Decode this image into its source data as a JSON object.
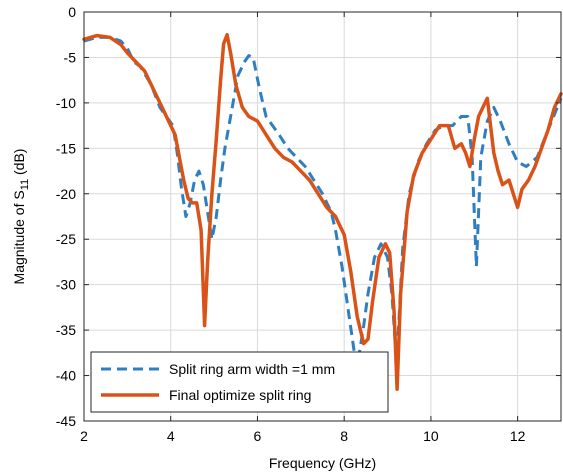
{
  "chart_data": {
    "type": "line",
    "title": "",
    "xlabel": "Frequency (GHz)",
    "ylabel_main": "Magnitude of S",
    "ylabel_sub": "11",
    "ylabel_unit": " (dB)",
    "xlim": [
      2,
      13
    ],
    "ylim": [
      -45,
      0
    ],
    "xticks": [
      2,
      4,
      6,
      8,
      10,
      12
    ],
    "xtick_labels": [
      "2",
      "4",
      "6",
      "8",
      "10",
      "12"
    ],
    "yticks": [
      0,
      -5,
      -10,
      -15,
      -20,
      -25,
      -30,
      -35,
      -40,
      -45
    ],
    "ytick_labels": [
      "0",
      "-5",
      "-10",
      "-15",
      "-20",
      "-25",
      "-30",
      "-35",
      "-40",
      "-45"
    ],
    "grid": true,
    "legend_position": "bottom-left",
    "series": [
      {
        "name": "Split ring arm width =1 mm",
        "color": "#2E7FC2",
        "style": "dashed",
        "x": [
          2.0,
          2.3,
          2.6,
          2.85,
          3.0,
          3.15,
          3.3,
          3.55,
          3.75,
          3.9,
          4.05,
          4.15,
          4.25,
          4.35,
          4.45,
          4.55,
          4.65,
          4.75,
          4.85,
          4.95,
          5.05,
          5.15,
          5.25,
          5.4,
          5.55,
          5.7,
          5.8,
          5.9,
          6.05,
          6.2,
          6.35,
          6.5,
          6.7,
          6.9,
          7.1,
          7.3,
          7.5,
          7.7,
          7.8,
          7.95,
          8.1,
          8.25,
          8.35,
          8.45,
          8.55,
          8.7,
          8.85,
          9.0,
          9.1,
          9.2,
          9.25,
          9.35,
          9.5,
          9.7,
          9.9,
          10.1,
          10.3,
          10.5,
          10.7,
          10.85,
          10.95,
          11.05,
          11.15,
          11.3,
          11.45,
          11.6,
          11.8,
          12.0,
          12.2,
          12.45,
          12.7,
          13.0
        ],
        "y": [
          -3.2,
          -2.8,
          -2.8,
          -3.2,
          -4.0,
          -5.5,
          -6.0,
          -8.0,
          -10.5,
          -11.5,
          -12.5,
          -15.5,
          -19.5,
          -22.5,
          -21.0,
          -18.5,
          -17.5,
          -19.0,
          -22.0,
          -25.0,
          -22.5,
          -18.5,
          -15.0,
          -11.0,
          -7.0,
          -5.5,
          -4.8,
          -5.0,
          -8.5,
          -11.5,
          -12.5,
          -13.5,
          -15.0,
          -16.0,
          -17.0,
          -18.5,
          -20.0,
          -22.0,
          -24.0,
          -28.0,
          -33.0,
          -38.0,
          -37.5,
          -34.5,
          -31.0,
          -27.0,
          -25.5,
          -27.0,
          -31.0,
          -38.0,
          -35.0,
          -26.0,
          -20.0,
          -16.5,
          -14.5,
          -13.0,
          -12.5,
          -12.5,
          -11.5,
          -11.5,
          -16.0,
          -28.0,
          -16.0,
          -12.0,
          -10.5,
          -12.0,
          -14.5,
          -16.5,
          -17.0,
          -16.0,
          -13.0,
          -9.5
        ]
      },
      {
        "name": "Final optimize split ring",
        "color": "#D95319",
        "style": "solid",
        "x": [
          2.0,
          2.3,
          2.6,
          2.85,
          3.0,
          3.2,
          3.4,
          3.6,
          3.8,
          3.95,
          4.1,
          4.2,
          4.3,
          4.4,
          4.5,
          4.6,
          4.7,
          4.78,
          4.85,
          4.95,
          5.05,
          5.15,
          5.22,
          5.3,
          5.38,
          5.5,
          5.65,
          5.8,
          6.0,
          6.2,
          6.4,
          6.6,
          6.8,
          7.0,
          7.2,
          7.4,
          7.6,
          7.8,
          8.0,
          8.15,
          8.3,
          8.45,
          8.55,
          8.65,
          8.8,
          8.95,
          9.05,
          9.15,
          9.22,
          9.3,
          9.45,
          9.6,
          9.8,
          10.0,
          10.2,
          10.4,
          10.55,
          10.7,
          10.8,
          10.9,
          11.0,
          11.1,
          11.2,
          11.3,
          11.45,
          11.55,
          11.65,
          11.8,
          11.9,
          12.0,
          12.1,
          12.25,
          12.4,
          12.55,
          12.7,
          12.85,
          13.0
        ],
        "y": [
          -3.0,
          -2.6,
          -2.8,
          -3.6,
          -4.5,
          -5.5,
          -6.5,
          -8.5,
          -10.5,
          -12.0,
          -13.5,
          -16.0,
          -18.5,
          -20.5,
          -21.0,
          -21.0,
          -24.0,
          -34.5,
          -27.5,
          -20.0,
          -14.0,
          -7.5,
          -3.5,
          -2.5,
          -4.5,
          -8.0,
          -10.5,
          -11.5,
          -12.0,
          -13.5,
          -15.0,
          -16.0,
          -16.5,
          -17.5,
          -18.5,
          -20.0,
          -21.5,
          -22.5,
          -24.5,
          -28.5,
          -33.5,
          -36.5,
          -36.0,
          -32.0,
          -27.0,
          -25.5,
          -26.5,
          -33.0,
          -41.5,
          -31.0,
          -22.0,
          -18.0,
          -15.5,
          -14.0,
          -12.5,
          -12.5,
          -15.0,
          -14.5,
          -15.5,
          -17.0,
          -14.0,
          -11.5,
          -10.5,
          -9.5,
          -15.5,
          -17.5,
          -19.0,
          -18.5,
          -20.0,
          -21.5,
          -19.5,
          -18.5,
          -17.0,
          -15.0,
          -13.0,
          -10.5,
          -9.0
        ]
      }
    ]
  }
}
